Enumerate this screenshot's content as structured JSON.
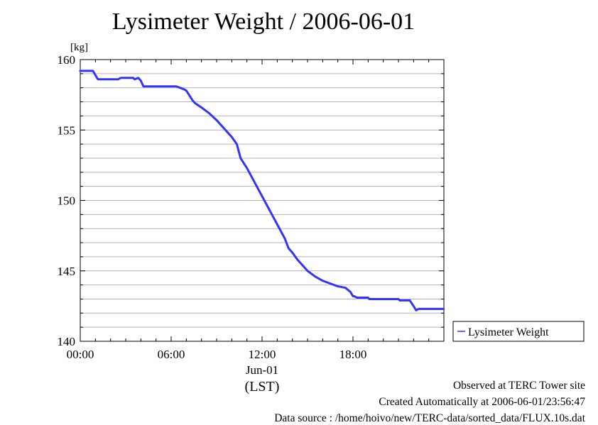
{
  "chart_data": {
    "type": "line",
    "title": "Lysimeter Weight / 2006-06-01",
    "ylabel": "[kg]",
    "ylim": [
      140,
      160
    ],
    "yticks": [
      140,
      145,
      150,
      155,
      160
    ],
    "xlim": [
      "2006-06-01T00:00",
      "2006-06-01T23:59"
    ],
    "xticks": [
      {
        "x": "2006-06-01T00:00",
        "label": "00:00"
      },
      {
        "x": "2006-06-01T06:00",
        "label": "06:00"
      },
      {
        "x": "2006-06-01T12:00",
        "label": "12:00"
      },
      {
        "x": "2006-06-01T18:00",
        "label": "18:00"
      }
    ],
    "date_label": "Jun-01",
    "xlabel": "(LST)",
    "grid": true,
    "legend_position": "right",
    "series": [
      {
        "name": "Lysimeter Weight",
        "color": "#3333ff",
        "x": [
          "2006-06-01T00:00",
          "2006-06-01T00:50",
          "2006-06-01T01:10",
          "2006-06-01T02:30",
          "2006-06-01T02:40",
          "2006-06-01T03:30",
          "2006-06-01T03:35",
          "2006-06-01T03:50",
          "2006-06-01T04:00",
          "2006-06-01T04:10",
          "2006-06-01T06:20",
          "2006-06-01T06:35",
          "2006-06-01T06:50",
          "2006-06-01T07:00",
          "2006-06-01T07:25",
          "2006-06-01T07:35",
          "2006-06-01T08:00",
          "2006-06-01T08:30",
          "2006-06-01T09:00",
          "2006-06-01T09:30",
          "2006-06-01T10:00",
          "2006-06-01T10:20",
          "2006-06-01T10:35",
          "2006-06-01T11:00",
          "2006-06-01T11:30",
          "2006-06-01T12:00",
          "2006-06-01T12:30",
          "2006-06-01T13:00",
          "2006-06-01T13:30",
          "2006-06-01T13:45",
          "2006-06-01T14:00",
          "2006-06-01T14:20",
          "2006-06-01T14:40",
          "2006-06-01T15:00",
          "2006-06-01T15:30",
          "2006-06-01T16:00",
          "2006-06-01T16:30",
          "2006-06-01T17:00",
          "2006-06-01T17:30",
          "2006-06-01T17:50",
          "2006-06-01T18:00",
          "2006-06-01T18:05",
          "2006-06-01T18:15",
          "2006-06-01T18:25",
          "2006-06-01T19:00",
          "2006-06-01T19:05",
          "2006-06-01T21:00",
          "2006-06-01T21:05",
          "2006-06-01T21:45",
          "2006-06-01T22:00",
          "2006-06-01T22:10",
          "2006-06-01T22:20",
          "2006-06-01T23:59"
        ],
        "y": [
          159.2,
          159.2,
          158.6,
          158.6,
          158.7,
          158.7,
          158.6,
          158.7,
          158.5,
          158.1,
          158.1,
          158.0,
          157.9,
          157.8,
          157.1,
          156.9,
          156.6,
          156.2,
          155.7,
          155.1,
          154.5,
          154.0,
          153.0,
          152.3,
          151.3,
          150.3,
          149.3,
          148.3,
          147.3,
          146.6,
          146.3,
          145.8,
          145.4,
          145.0,
          144.6,
          144.3,
          144.1,
          143.9,
          143.8,
          143.5,
          143.2,
          143.2,
          143.1,
          143.1,
          143.1,
          143.0,
          143.0,
          142.9,
          142.9,
          142.5,
          142.2,
          142.3,
          142.3
        ]
      }
    ]
  },
  "footer": {
    "line1": "Observed at TERC Tower site",
    "line2": "Created Automatically at 2006-06-01/23:56:47",
    "line3": "Data source : /home/hoivo/new/TERC-data/sorted_data/FLUX.10s.dat"
  }
}
